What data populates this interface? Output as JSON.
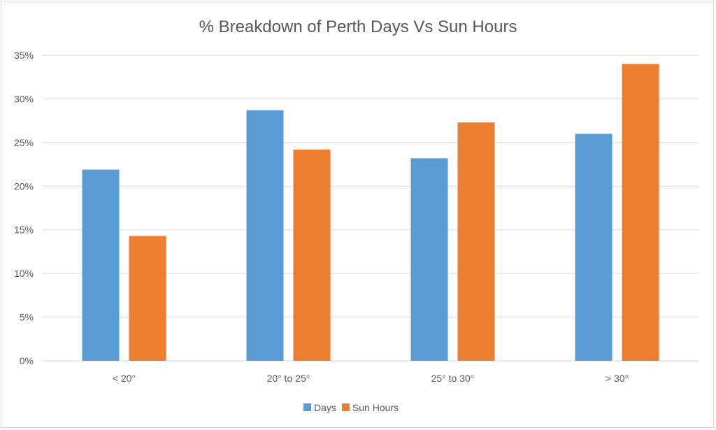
{
  "chart_data": {
    "type": "bar",
    "title": "% Breakdown of Perth Days Vs Sun Hours",
    "categories": [
      "< 20°",
      "20° to 25°",
      "25° to 30°",
      "> 30°"
    ],
    "series": [
      {
        "name": "Days",
        "color": "#5b9bd5",
        "values": [
          21.9,
          28.7,
          23.2,
          26.0
        ]
      },
      {
        "name": "Sun Hours",
        "color": "#ed7d31",
        "values": [
          14.3,
          24.2,
          27.3,
          34.0
        ]
      }
    ],
    "ylim": [
      0,
      35
    ],
    "yticks": [
      "0%",
      "5%",
      "10%",
      "15%",
      "20%",
      "25%",
      "30%",
      "35%"
    ],
    "xlabel": "",
    "ylabel": "",
    "grid": true,
    "legend": "bottom"
  }
}
